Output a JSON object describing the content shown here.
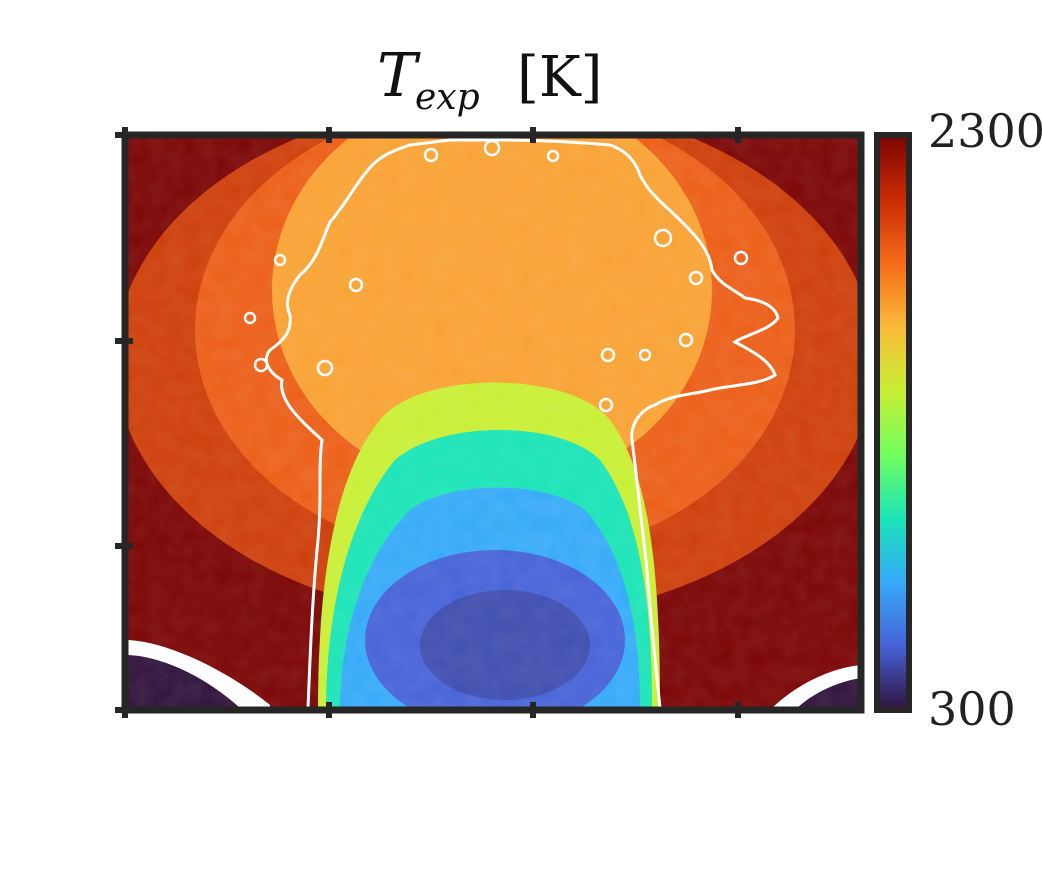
{
  "chart_data": {
    "type": "heatmap",
    "title": {
      "symbol": "T",
      "subscript": "exp",
      "unit": "[K]"
    },
    "colorbar": {
      "min": 300,
      "max": 2300,
      "min_label": "300",
      "max_label": "2300",
      "colormap": "turbo",
      "stops": [
        "#30123b",
        "#4662d7",
        "#36aaf9",
        "#1ae4b6",
        "#72fe5e",
        "#c8ef34",
        "#faba39",
        "#f66b19",
        "#ca2a04",
        "#7a0403"
      ]
    },
    "contour_color": "#ffffff",
    "frame_color": "#262626",
    "tick_labels_shown": false
  }
}
